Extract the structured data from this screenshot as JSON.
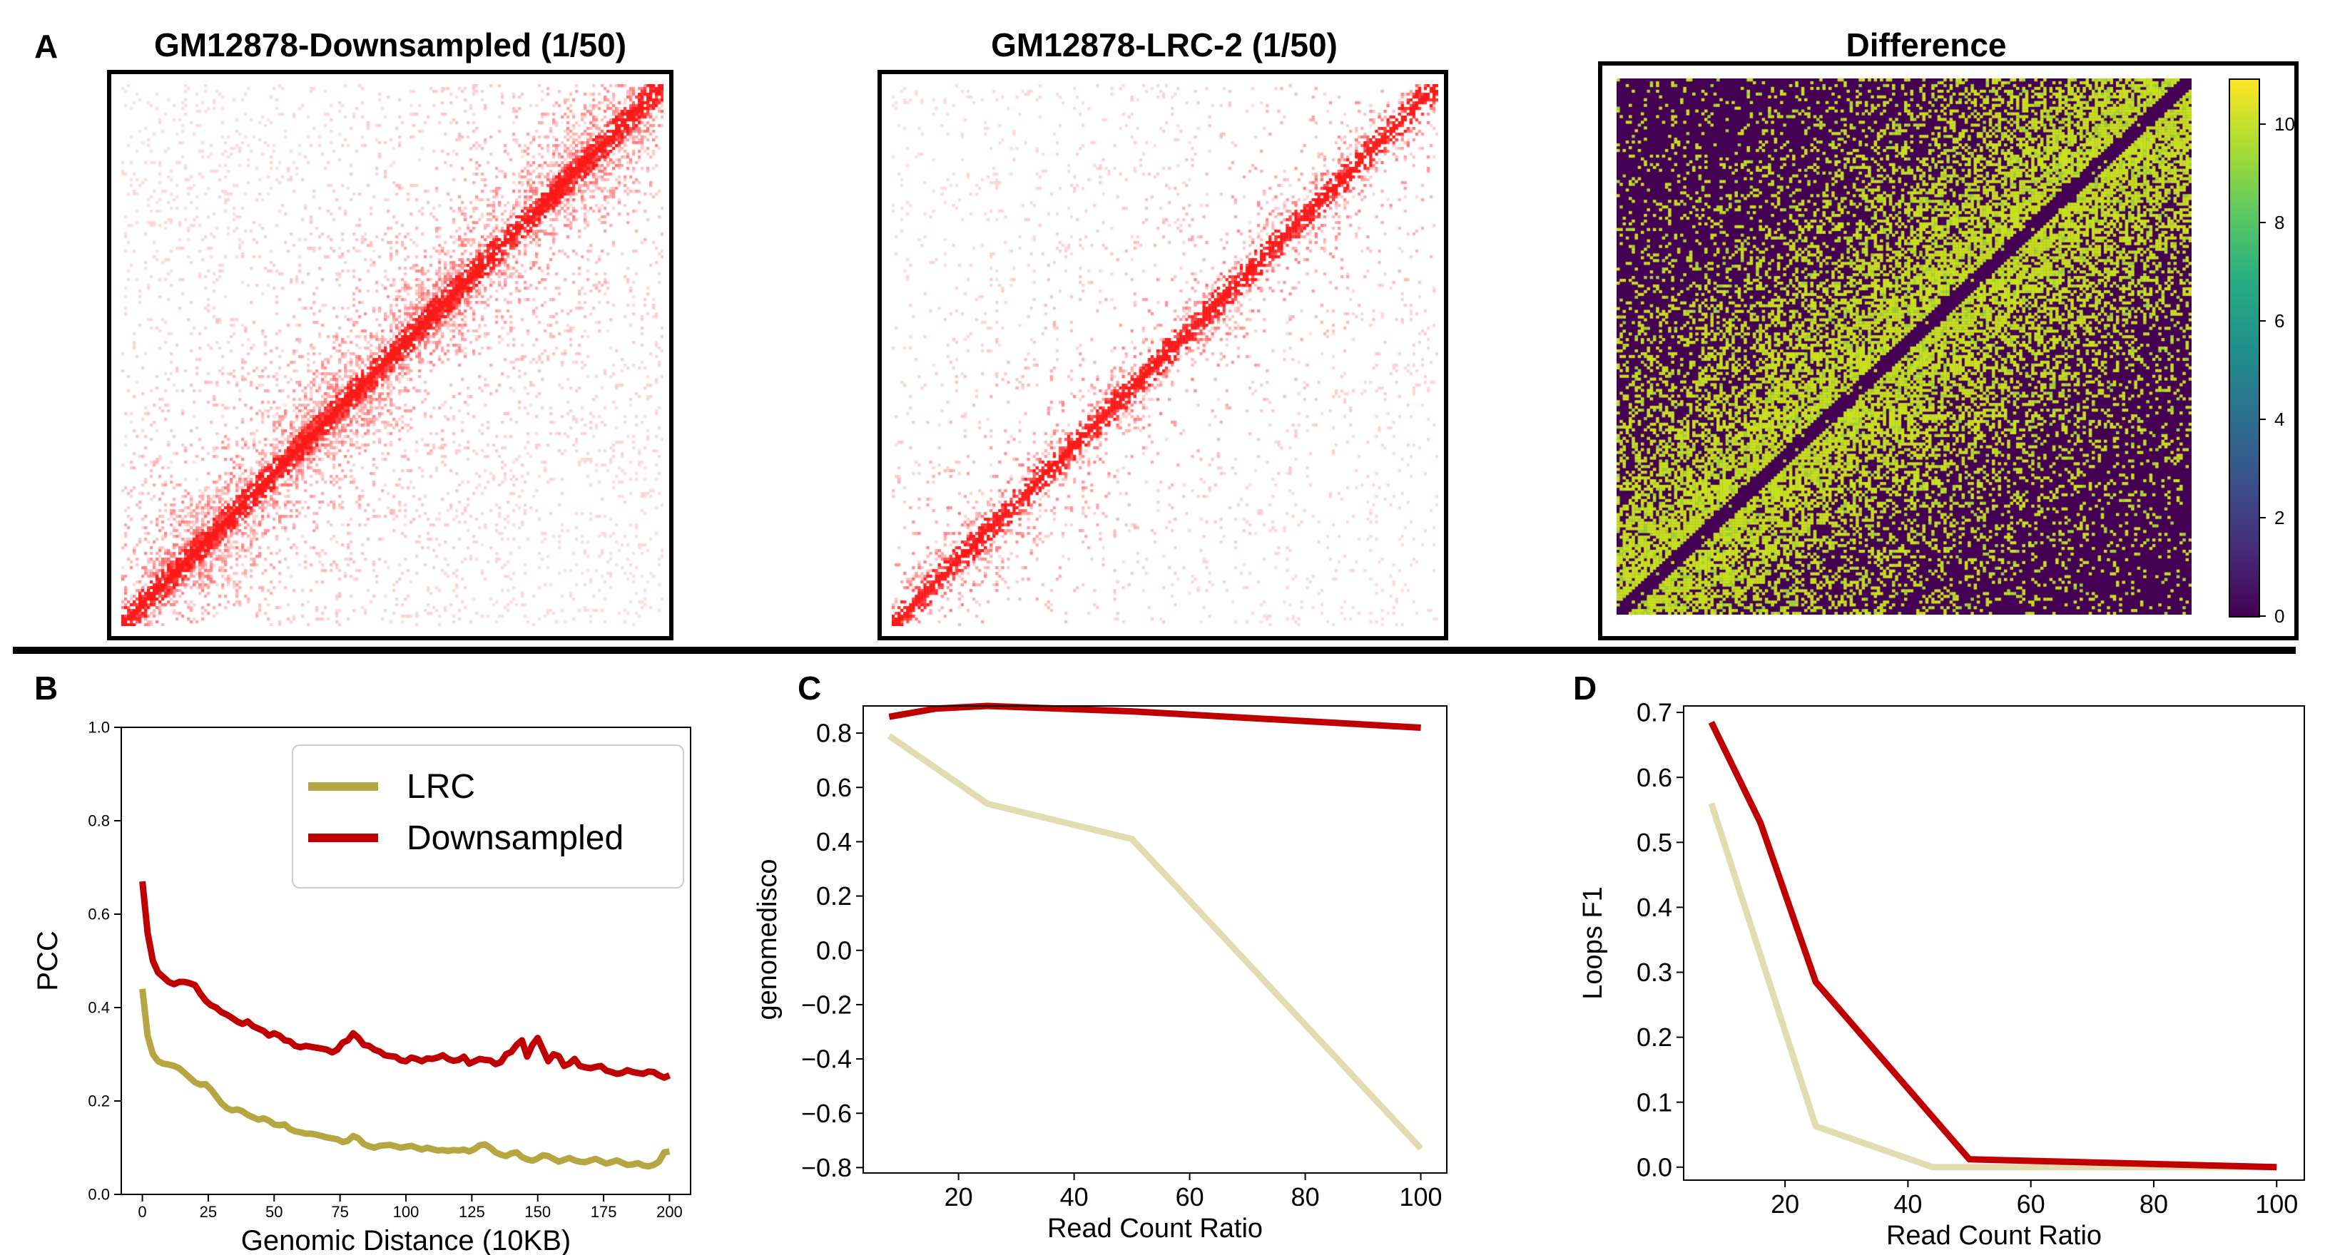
{
  "panel_labels": {
    "a": "A",
    "b": "B",
    "c": "C",
    "d": "D"
  },
  "heatmaps": {
    "left_title": "GM12878-Downsampled (1/50)",
    "mid_title": "GM12878-LRC-2 (1/50)",
    "right_title": "Difference",
    "colorbar_ticks": [
      "0",
      "2",
      "4",
      "6",
      "8",
      "10"
    ],
    "colors": {
      "contact": "#ff1a1a",
      "diff_low": "#440154",
      "diff_high": "#c8e020"
    }
  },
  "chart_data": [
    {
      "type": "line",
      "panel": "B",
      "title": "",
      "xlabel": "Genomic Distance (10KB)",
      "ylabel": "PCC",
      "xlim": [
        -8,
        208
      ],
      "ylim": [
        0,
        1.0
      ],
      "xticks": [
        0,
        25,
        50,
        75,
        100,
        125,
        150,
        175,
        200
      ],
      "yticks": [
        0.0,
        0.2,
        0.4,
        0.6,
        0.8,
        1.0
      ],
      "xtick_labels": [
        "0",
        "25",
        "50",
        "75",
        "100",
        "125",
        "150",
        "175",
        "200"
      ],
      "ytick_labels": [
        "0.0",
        "0.2",
        "0.4",
        "0.6",
        "0.8",
        "1.0"
      ],
      "legend": [
        "LRC",
        "Downsampled"
      ],
      "legend_position": "top-right",
      "series": [
        {
          "name": "LRC",
          "color": "#b5a642",
          "x": [
            0,
            2,
            4,
            6,
            8,
            10,
            12,
            14,
            16,
            18,
            20,
            22,
            24,
            26,
            28,
            30,
            32,
            34,
            36,
            38,
            40,
            42,
            44,
            46,
            48,
            50,
            52,
            54,
            56,
            58,
            60,
            62,
            64,
            66,
            68,
            70,
            72,
            74,
            76,
            78,
            80,
            82,
            84,
            86,
            88,
            90,
            92,
            94,
            96,
            98,
            100,
            102,
            104,
            106,
            108,
            110,
            112,
            114,
            116,
            118,
            120,
            122,
            124,
            126,
            128,
            130,
            132,
            134,
            136,
            138,
            140,
            142,
            144,
            146,
            148,
            150,
            152,
            154,
            156,
            158,
            160,
            162,
            164,
            166,
            168,
            170,
            172,
            174,
            176,
            178,
            180,
            182,
            184,
            186,
            188,
            190,
            192,
            194,
            196,
            198,
            200
          ],
          "y": [
            0.44,
            0.34,
            0.3,
            0.285,
            0.28,
            0.278,
            0.275,
            0.27,
            0.26,
            0.25,
            0.24,
            0.235,
            0.236,
            0.225,
            0.21,
            0.195,
            0.185,
            0.18,
            0.182,
            0.178,
            0.17,
            0.165,
            0.16,
            0.163,
            0.158,
            0.15,
            0.148,
            0.15,
            0.14,
            0.135,
            0.133,
            0.13,
            0.13,
            0.128,
            0.125,
            0.122,
            0.12,
            0.118,
            0.112,
            0.115,
            0.125,
            0.12,
            0.108,
            0.103,
            0.1,
            0.104,
            0.105,
            0.106,
            0.103,
            0.1,
            0.102,
            0.104,
            0.1,
            0.096,
            0.1,
            0.097,
            0.094,
            0.095,
            0.093,
            0.095,
            0.094,
            0.096,
            0.092,
            0.097,
            0.105,
            0.107,
            0.1,
            0.09,
            0.085,
            0.082,
            0.088,
            0.09,
            0.08,
            0.075,
            0.072,
            0.077,
            0.084,
            0.082,
            0.076,
            0.07,
            0.074,
            0.078,
            0.073,
            0.07,
            0.069,
            0.073,
            0.076,
            0.071,
            0.066,
            0.069,
            0.073,
            0.068,
            0.063,
            0.064,
            0.067,
            0.062,
            0.06,
            0.063,
            0.07,
            0.09,
            0.092
          ]
        },
        {
          "name": "Downsampled",
          "color": "#c00000",
          "x": [
            0,
            2,
            4,
            6,
            8,
            10,
            12,
            14,
            16,
            18,
            20,
            22,
            24,
            26,
            28,
            30,
            32,
            34,
            36,
            38,
            40,
            42,
            44,
            46,
            48,
            50,
            52,
            54,
            56,
            58,
            60,
            62,
            64,
            66,
            68,
            70,
            72,
            74,
            76,
            78,
            80,
            82,
            84,
            86,
            88,
            90,
            92,
            94,
            96,
            98,
            100,
            102,
            104,
            106,
            108,
            110,
            112,
            114,
            116,
            118,
            120,
            122,
            124,
            126,
            128,
            130,
            132,
            134,
            136,
            138,
            140,
            142,
            144,
            146,
            148,
            150,
            152,
            154,
            156,
            158,
            160,
            162,
            164,
            166,
            168,
            170,
            172,
            174,
            176,
            178,
            180,
            182,
            184,
            186,
            188,
            190,
            192,
            194,
            196,
            198,
            200
          ],
          "y": [
            0.67,
            0.56,
            0.5,
            0.475,
            0.465,
            0.455,
            0.45,
            0.455,
            0.455,
            0.452,
            0.448,
            0.43,
            0.415,
            0.405,
            0.4,
            0.39,
            0.385,
            0.378,
            0.37,
            0.365,
            0.37,
            0.36,
            0.355,
            0.35,
            0.34,
            0.345,
            0.34,
            0.33,
            0.328,
            0.318,
            0.315,
            0.318,
            0.316,
            0.314,
            0.312,
            0.31,
            0.304,
            0.31,
            0.325,
            0.33,
            0.345,
            0.335,
            0.32,
            0.318,
            0.31,
            0.306,
            0.298,
            0.296,
            0.295,
            0.287,
            0.285,
            0.293,
            0.29,
            0.285,
            0.291,
            0.29,
            0.293,
            0.298,
            0.29,
            0.286,
            0.288,
            0.295,
            0.28,
            0.285,
            0.29,
            0.288,
            0.287,
            0.279,
            0.283,
            0.3,
            0.305,
            0.32,
            0.33,
            0.295,
            0.32,
            0.335,
            0.31,
            0.285,
            0.3,
            0.296,
            0.275,
            0.28,
            0.29,
            0.275,
            0.272,
            0.27,
            0.273,
            0.275,
            0.265,
            0.262,
            0.258,
            0.26,
            0.266,
            0.262,
            0.26,
            0.258,
            0.263,
            0.262,
            0.255,
            0.25,
            0.255
          ]
        }
      ]
    },
    {
      "type": "line",
      "panel": "C",
      "title": "",
      "xlabel": "Read Count Ratio",
      "ylabel": "genomedisco",
      "xlim": [
        3.5,
        104.5
      ],
      "ylim": [
        -0.82,
        0.9
      ],
      "xticks": [
        20,
        40,
        60,
        80,
        100
      ],
      "yticks": [
        -0.8,
        -0.6,
        -0.4,
        -0.2,
        0.0,
        0.2,
        0.4,
        0.6,
        0.8
      ],
      "xtick_labels": [
        "20",
        "40",
        "60",
        "80",
        "100"
      ],
      "ytick_labels": [
        "−0.8",
        "−0.6",
        "−0.4",
        "−0.2",
        "0.0",
        "0.2",
        "0.4",
        "0.6",
        "0.8"
      ],
      "series": [
        {
          "name": "LRC",
          "color": "#e3dcb0",
          "x": [
            8,
            25,
            50,
            100
          ],
          "y": [
            0.79,
            0.54,
            0.41,
            -0.73
          ]
        },
        {
          "name": "Downsampled",
          "color": "#c00000",
          "x": [
            8,
            16,
            25,
            50,
            100
          ],
          "y": [
            0.86,
            0.89,
            0.9,
            0.88,
            0.82
          ]
        }
      ]
    },
    {
      "type": "line",
      "panel": "D",
      "title": "",
      "xlabel": "Read Count Ratio",
      "ylabel": "Loops F1",
      "xlim": [
        3.5,
        104.5
      ],
      "ylim": [
        -0.02,
        0.71
      ],
      "xticks": [
        20,
        40,
        60,
        80,
        100
      ],
      "yticks": [
        0.0,
        0.1,
        0.2,
        0.3,
        0.4,
        0.5,
        0.6,
        0.7
      ],
      "xtick_labels": [
        "20",
        "40",
        "60",
        "80",
        "100"
      ],
      "ytick_labels": [
        "0.0",
        "0.1",
        "0.2",
        "0.3",
        "0.4",
        "0.5",
        "0.6",
        "0.7"
      ],
      "series": [
        {
          "name": "LRC",
          "color": "#e3dcb0",
          "x": [
            8,
            25,
            44,
            50,
            100
          ],
          "y": [
            0.56,
            0.063,
            0.0,
            0.0,
            0.0
          ]
        },
        {
          "name": "Downsampled",
          "color": "#c00000",
          "x": [
            8,
            16,
            25,
            50,
            100
          ],
          "y": [
            0.685,
            0.53,
            0.285,
            0.012,
            0.0
          ]
        }
      ]
    }
  ]
}
